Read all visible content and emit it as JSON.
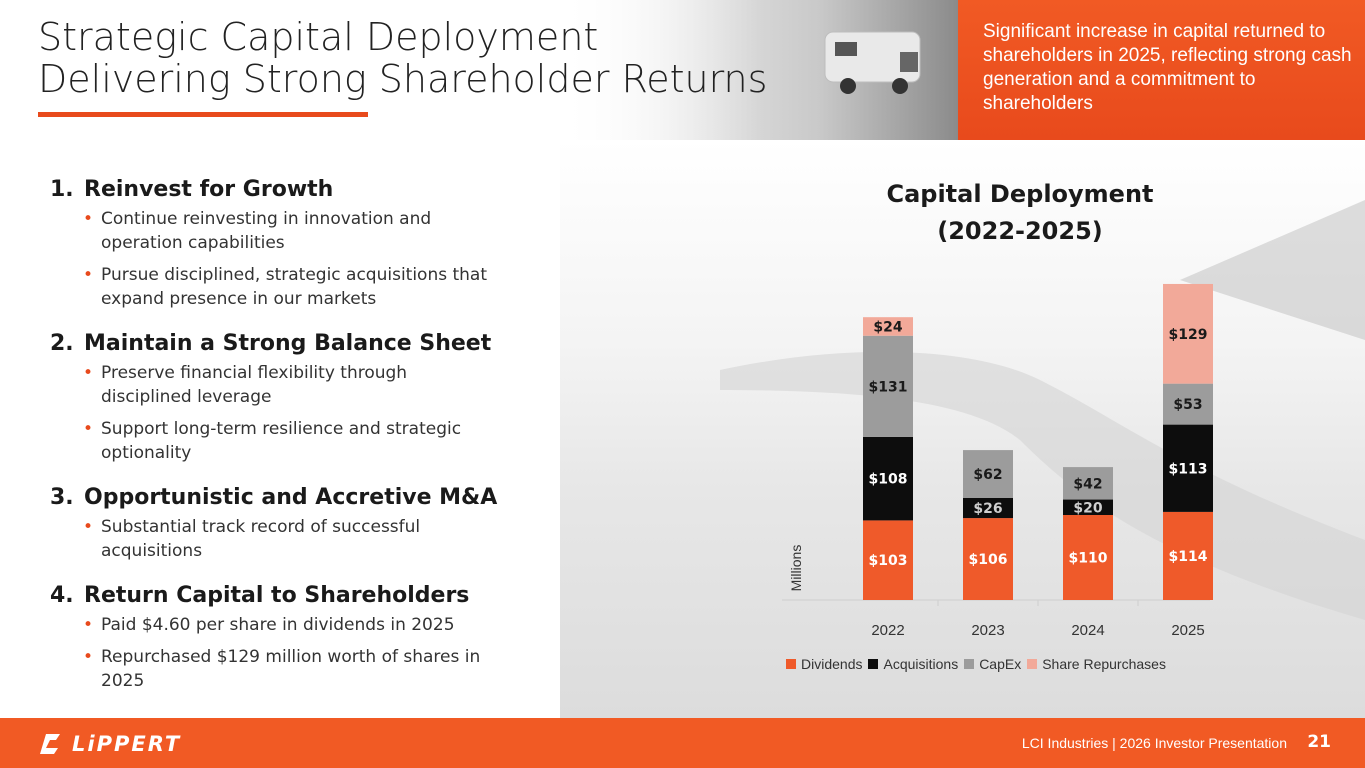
{
  "header": {
    "title_line1": "Strategic Capital Deployment",
    "title_line2": "Delivering Strong Shareholder Returns",
    "callout": "Significant increase in capital returned to shareholders in 2025, reflecting strong cash generation and a commitment to shareholders"
  },
  "sections": [
    {
      "num": "1.",
      "title": "Reinvest for Growth",
      "bullets": [
        "Continue reinvesting in innovation and operation capabilities",
        "Pursue disciplined, strategic acquisitions that expand presence in our markets"
      ]
    },
    {
      "num": "2.",
      "title": "Maintain a Strong Balance Sheet",
      "bullets": [
        "Preserve financial flexibility through disciplined leverage",
        "Support long-term resilience and strategic optionality"
      ]
    },
    {
      "num": "3.",
      "title": "Opportunistic and Accretive M&A",
      "bullets": [
        "Substantial track record of successful acquisitions"
      ]
    },
    {
      "num": "4.",
      "title": "Return Capital to Shareholders",
      "bullets": [
        "Paid $4.60 per share in dividends in 2025",
        "Repurchased $129 million worth of shares in 2025"
      ]
    }
  ],
  "chart_title_line1": "Capital Deployment",
  "chart_title_line2": "(2022-2025)",
  "chart_data": {
    "type": "bar",
    "stacked": true,
    "categories": [
      "2022",
      "2023",
      "2024",
      "2025"
    ],
    "ylabel": "Millions",
    "series": [
      {
        "name": "Dividends",
        "color": "#ef5a2a",
        "values": [
          103,
          106,
          110,
          114
        ],
        "labels": [
          "$103",
          "$106",
          "$110",
          "$114"
        ]
      },
      {
        "name": "Acquisitions",
        "color": "#0d0d0d",
        "values": [
          108,
          26,
          20,
          113
        ],
        "labels": [
          "$108",
          "$26",
          "$20",
          "$113"
        ]
      },
      {
        "name": "CapEx",
        "color": "#9c9c9c",
        "values": [
          131,
          62,
          42,
          53
        ],
        "labels": [
          "$131",
          "$62",
          "$42",
          "$53"
        ]
      },
      {
        "name": "Share Repurchases",
        "color": "#f2a999",
        "values": [
          24,
          0,
          0,
          129
        ],
        "labels": [
          "$24",
          "",
          "",
          "$129"
        ]
      }
    ],
    "legend_position": "bottom",
    "grid": false
  },
  "footer": {
    "logo": "LiPPERT",
    "text": "LCI Industries | 2026 Investor Presentation",
    "page": "21"
  }
}
